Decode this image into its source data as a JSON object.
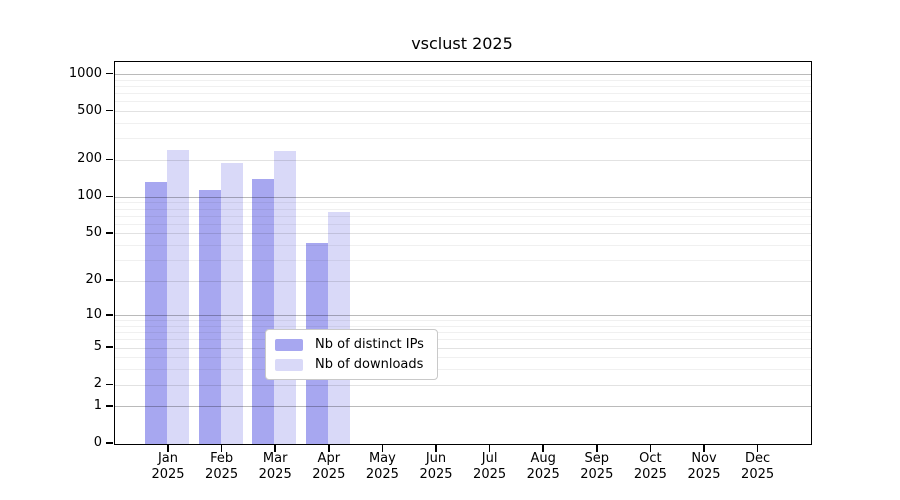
{
  "chart_data": {
    "type": "bar",
    "title": "vsclust 2025",
    "categories": [
      "Jan",
      "Feb",
      "Mar",
      "Apr",
      "May",
      "Jun",
      "Jul",
      "Aug",
      "Sep",
      "Oct",
      "Nov",
      "Dec"
    ],
    "category_sublabel": "2025",
    "series": [
      {
        "name": "Nb of distinct IPs",
        "color": "#a7a7f0",
        "values": [
          134,
          115,
          141,
          42,
          null,
          null,
          null,
          null,
          null,
          null,
          null,
          null
        ]
      },
      {
        "name": "Nb of downloads",
        "color": "#d9d9f8",
        "values": [
          243,
          191,
          237,
          75,
          null,
          null,
          null,
          null,
          null,
          null,
          null,
          null
        ]
      }
    ],
    "yticks": [
      0,
      1,
      2,
      5,
      10,
      20,
      50,
      100,
      200,
      500,
      1000
    ],
    "ylim": [
      0,
      1000
    ],
    "yscale": "log10(value+1)",
    "grid": "horizontal",
    "gridline_minor_multiples": [
      3,
      4,
      6,
      7,
      8,
      9
    ],
    "legend_position": "inside-bottom-center",
    "colors": {
      "axis": "#000000",
      "background": "#ffffff",
      "major_gridline": "#bababa",
      "tick_gridline": "#e2e2e2",
      "minor_gridline": "#efefef"
    }
  }
}
